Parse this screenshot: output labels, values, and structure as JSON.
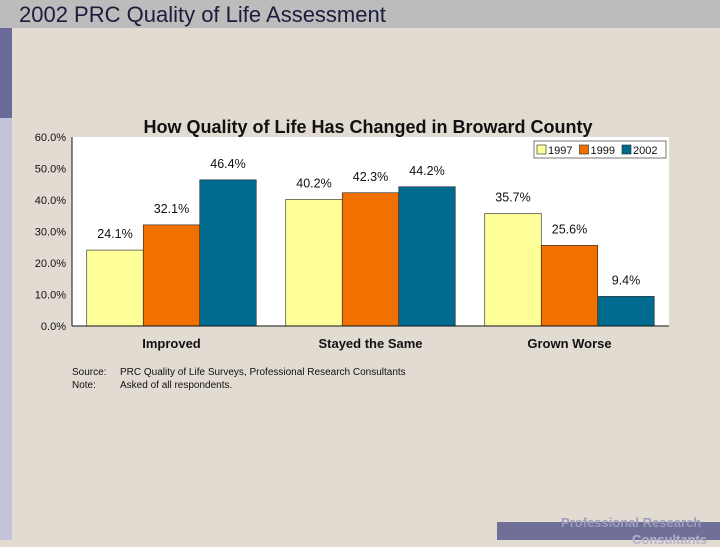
{
  "header": {
    "title": "2002 PRC Quality of Life Assessment"
  },
  "footer": {
    "line1": "Professional Research",
    "line2": "Consultants"
  },
  "notes": [
    {
      "label": "Source:",
      "text": "PRC Quality of Life Surveys, Professional Research Consultants"
    },
    {
      "label": "Note:",
      "text": "Asked of all respondents."
    }
  ],
  "chart_data": {
    "type": "bar",
    "title": "How Quality of Life Has Changed in Broward County",
    "categories": [
      "Improved",
      "Stayed the Same",
      "Grown Worse"
    ],
    "series": [
      {
        "name": "1997",
        "values": [
          24.1,
          40.2,
          35.7
        ],
        "labels": [
          "24.1%",
          "40.2%",
          "35.7%"
        ],
        "color": "#ffff99"
      },
      {
        "name": "1999",
        "values": [
          32.1,
          42.3,
          25.6
        ],
        "labels": [
          "32.1%",
          "42.3%",
          "25.6%"
        ],
        "color": "#f07000"
      },
      {
        "name": "2002",
        "values": [
          46.4,
          44.2,
          9.4
        ],
        "labels": [
          "46.4%",
          "44.2%",
          "9.4%"
        ],
        "color": "#006b8f"
      }
    ],
    "yticks": [
      "0.0%",
      "10.0%",
      "20.0%",
      "30.0%",
      "40.0%",
      "50.0%",
      "60.0%"
    ],
    "ylim": [
      0,
      60
    ],
    "legend": "top-right",
    "grid": false
  }
}
